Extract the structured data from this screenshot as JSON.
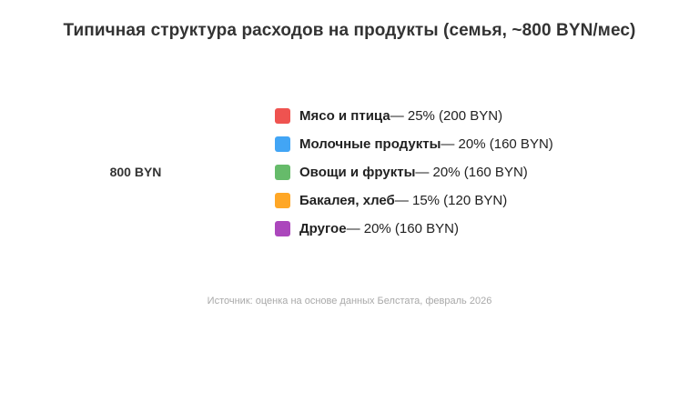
{
  "chart_data": {
    "type": "pie",
    "title": "Типичная структура расходов на продукты (семья, ~800 BYN/мес)",
    "center_label": "800 BYN",
    "total": 800,
    "unit": "BYN",
    "categories": [
      "Мясо и птица",
      "Молочные продукты",
      "Овощи и фрукты",
      "Бакалея, хлеб",
      "Другое"
    ],
    "values": [
      200,
      160,
      160,
      120,
      160
    ],
    "percentages": [
      25,
      20,
      20,
      15,
      20
    ],
    "colors": [
      "#ef5350",
      "#42a5f5",
      "#66bb6a",
      "#ffa726",
      "#ab47bc"
    ],
    "legend_position": "right",
    "source": "Источник: оценка на основе данных Белстата, февраль 2026"
  },
  "title": "Типичная структура расходов на продукты (семья, ~800 BYN/мес)",
  "center_label": "800 BYN",
  "legend": [
    {
      "label": "Мясо и птица",
      "rest": " — 25% (200 BYN)",
      "color": "#ef5350"
    },
    {
      "label": "Молочные продукты",
      "rest": " — 20% (160 BYN)",
      "color": "#42a5f5"
    },
    {
      "label": "Овощи и фрукты",
      "rest": " — 20% (160 BYN)",
      "color": "#66bb6a"
    },
    {
      "label": "Бакалея, хлеб",
      "rest": " — 15% (120 BYN)",
      "color": "#ffa726"
    },
    {
      "label": "Другое",
      "rest": " — 20% (160 BYN)",
      "color": "#ab47bc"
    }
  ],
  "source": "Источник: оценка на основе данных Белстата, февраль 2026"
}
